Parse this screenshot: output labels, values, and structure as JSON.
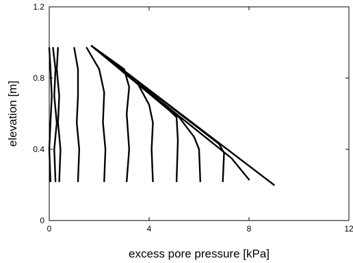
{
  "chart_data": {
    "type": "line",
    "title": "",
    "xlabel": "excess pore pressure [kPa]",
    "ylabel": "elevation [m]",
    "xlim": [
      0,
      12
    ],
    "ylim": [
      0,
      1.2
    ],
    "xticks": [
      "0",
      "4",
      "8",
      "12"
    ],
    "yticks": [
      "0",
      "0.4",
      "0.8",
      "1.2"
    ],
    "grid": false,
    "legend": "none",
    "line_color": "#000000",
    "series": [
      {
        "points": [
          [
            0.0,
            0.97
          ],
          [
            0.05,
            0.85
          ],
          [
            0.1,
            0.7
          ],
          [
            0.05,
            0.55
          ],
          [
            0.0,
            0.4
          ],
          [
            0.05,
            0.22
          ]
        ]
      },
      {
        "points": [
          [
            0.15,
            0.97
          ],
          [
            0.25,
            0.85
          ],
          [
            0.2,
            0.7
          ],
          [
            0.3,
            0.55
          ],
          [
            0.2,
            0.4
          ],
          [
            0.25,
            0.22
          ]
        ]
      },
      {
        "points": [
          [
            0.35,
            0.97
          ],
          [
            0.3,
            0.85
          ],
          [
            0.4,
            0.7
          ],
          [
            0.35,
            0.55
          ],
          [
            0.45,
            0.4
          ],
          [
            0.4,
            0.22
          ]
        ]
      },
      {
        "points": [
          [
            1.0,
            0.97
          ],
          [
            1.15,
            0.85
          ],
          [
            1.15,
            0.7
          ],
          [
            1.1,
            0.55
          ],
          [
            1.2,
            0.4
          ],
          [
            1.15,
            0.22
          ]
        ]
      },
      {
        "points": [
          [
            1.5,
            0.97
          ],
          [
            2.0,
            0.85
          ],
          [
            2.2,
            0.72
          ],
          [
            2.15,
            0.55
          ],
          [
            2.25,
            0.4
          ],
          [
            2.2,
            0.22
          ]
        ]
      },
      {
        "points": [
          [
            1.7,
            0.98
          ],
          [
            3.0,
            0.85
          ],
          [
            3.2,
            0.75
          ],
          [
            3.1,
            0.6
          ],
          [
            3.2,
            0.4
          ],
          [
            3.1,
            0.22
          ]
        ]
      },
      {
        "points": [
          [
            1.7,
            0.98
          ],
          [
            3.5,
            0.78
          ],
          [
            4.0,
            0.65
          ],
          [
            4.15,
            0.55
          ],
          [
            4.1,
            0.4
          ],
          [
            4.15,
            0.22
          ]
        ]
      },
      {
        "points": [
          [
            1.7,
            0.98
          ],
          [
            4.8,
            0.62
          ],
          [
            5.1,
            0.58
          ],
          [
            5.15,
            0.45
          ],
          [
            5.1,
            0.22
          ]
        ]
      },
      {
        "points": [
          [
            1.7,
            0.98
          ],
          [
            5.2,
            0.58
          ],
          [
            5.8,
            0.47
          ],
          [
            6.0,
            0.4
          ],
          [
            6.05,
            0.22
          ]
        ]
      },
      {
        "points": [
          [
            1.7,
            0.98
          ],
          [
            6.8,
            0.43
          ],
          [
            7.0,
            0.38
          ],
          [
            6.95,
            0.22
          ]
        ]
      },
      {
        "points": [
          [
            1.7,
            0.98
          ],
          [
            6.5,
            0.44
          ],
          [
            7.3,
            0.35
          ],
          [
            8.0,
            0.23
          ]
        ]
      },
      {
        "points": [
          [
            1.7,
            0.98
          ],
          [
            9.0,
            0.2
          ]
        ]
      }
    ]
  }
}
